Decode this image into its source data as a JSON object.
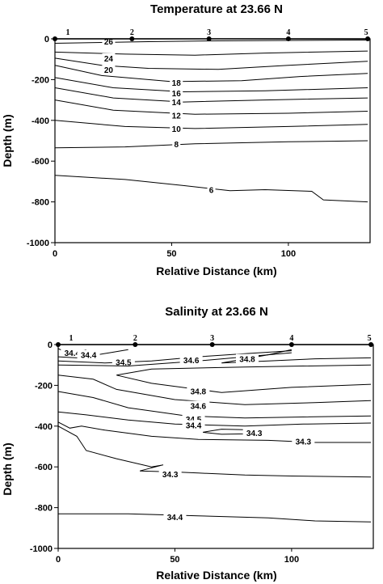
{
  "chart_data": [
    {
      "type": "contour",
      "title": "Temperature at 23.66 N",
      "xlabel": "Relative Distance (km)",
      "ylabel": "Depth (m)",
      "xlim": [
        0,
        135
      ],
      "ylim": [
        -1000,
        0
      ],
      "x_ticks": [
        0,
        50,
        100
      ],
      "y_ticks": [
        0,
        -200,
        -400,
        -600,
        -800,
        -1000
      ],
      "stations": [
        {
          "label": "1",
          "x": 0
        },
        {
          "label": "2",
          "x": 33
        },
        {
          "label": "3",
          "x": 66
        },
        {
          "label": "4",
          "x": 100
        },
        {
          "label": "5",
          "x": 134
        }
      ],
      "contours": [
        {
          "level": "26",
          "label_at": [
            23,
            -12
          ],
          "points": [
            [
              0,
              -22
            ],
            [
              20,
              -18
            ],
            [
              40,
              -14
            ],
            [
              70,
              -10
            ],
            [
              100,
              -8
            ],
            [
              134,
              -6
            ]
          ]
        },
        {
          "level": "24",
          "label_at": [
            23,
            -95
          ],
          "points": [
            [
              0,
              -65
            ],
            [
              30,
              -75
            ],
            [
              60,
              -80
            ],
            [
              90,
              -70
            ],
            [
              134,
              -60
            ]
          ]
        },
        {
          "level": "20",
          "label_at": [
            23,
            -150
          ],
          "points": [
            [
              0,
              -95
            ],
            [
              20,
              -130
            ],
            [
              40,
              -145
            ],
            [
              70,
              -150
            ],
            [
              100,
              -130
            ],
            [
              134,
              -110
            ]
          ]
        },
        {
          "level": "18",
          "label_at": [
            52,
            -215
          ],
          "points": [
            [
              0,
              -130
            ],
            [
              20,
              -180
            ],
            [
              50,
              -210
            ],
            [
              80,
              -205
            ],
            [
              105,
              -185
            ],
            [
              134,
              -170
            ]
          ]
        },
        {
          "level": "16",
          "label_at": [
            52,
            -265
          ],
          "points": [
            [
              0,
              -190
            ],
            [
              25,
              -240
            ],
            [
              55,
              -260
            ],
            [
              90,
              -255
            ],
            [
              134,
              -240
            ]
          ]
        },
        {
          "level": "14",
          "label_at": [
            52,
            -310
          ],
          "points": [
            [
              0,
              -240
            ],
            [
              25,
              -290
            ],
            [
              55,
              -310
            ],
            [
              90,
              -300
            ],
            [
              134,
              -290
            ]
          ]
        },
        {
          "level": "12",
          "label_at": [
            52,
            -375
          ],
          "points": [
            [
              0,
              -300
            ],
            [
              25,
              -350
            ],
            [
              60,
              -370
            ],
            [
              100,
              -365
            ],
            [
              134,
              -355
            ]
          ]
        },
        {
          "level": "10",
          "label_at": [
            52,
            -440
          ],
          "points": [
            [
              0,
              -400
            ],
            [
              30,
              -430
            ],
            [
              60,
              -440
            ],
            [
              100,
              -430
            ],
            [
              134,
              -420
            ]
          ]
        },
        {
          "level": "8",
          "label_at": [
            52,
            -515
          ],
          "points": [
            [
              0,
              -535
            ],
            [
              30,
              -530
            ],
            [
              60,
              -515
            ],
            [
              100,
              -505
            ],
            [
              134,
              -500
            ]
          ]
        },
        {
          "level": "6",
          "label_at": [
            67,
            -740
          ],
          "points": [
            [
              0,
              -670
            ],
            [
              30,
              -690
            ],
            [
              55,
              -720
            ],
            [
              75,
              -745
            ],
            [
              90,
              -740
            ],
            [
              110,
              -748
            ],
            [
              115,
              -790
            ],
            [
              134,
              -800
            ]
          ]
        }
      ]
    },
    {
      "type": "contour",
      "title": "Salinity at 23.66 N",
      "xlabel": "Relative Distance (km)",
      "ylabel": "Depth (m)",
      "xlim": [
        0,
        135
      ],
      "ylim": [
        -1000,
        0
      ],
      "x_ticks": [
        0,
        50,
        100
      ],
      "y_ticks": [
        0,
        -200,
        -400,
        -600,
        -800,
        -1000
      ],
      "stations": [
        {
          "label": "1",
          "x": 0
        },
        {
          "label": "2",
          "x": 33
        },
        {
          "label": "3",
          "x": 66
        },
        {
          "label": "4",
          "x": 100
        },
        {
          "label": "5",
          "x": 134
        }
      ],
      "contours": [
        {
          "level": "34.4",
          "label_at": [
            6,
            -40
          ],
          "points": [
            [
              0,
              -20
            ],
            [
              3,
              -35
            ],
            [
              6,
              -45
            ],
            [
              9,
              -35
            ],
            [
              12,
              -25
            ]
          ]
        },
        {
          "level": "34.4",
          "label_at": [
            13,
            -50
          ],
          "points": [
            [
              0,
              -60
            ],
            [
              8,
              -65
            ],
            [
              14,
              -55
            ],
            [
              22,
              -40
            ],
            [
              30,
              -25
            ]
          ]
        },
        {
          "level": "34.5",
          "label_at": [
            28,
            -85
          ],
          "points": [
            [
              0,
              -80
            ],
            [
              20,
              -90
            ],
            [
              40,
              -80
            ],
            [
              60,
              -60
            ],
            [
              80,
              -45
            ],
            [
              100,
              -30
            ]
          ]
        },
        {
          "level": "34.6",
          "label_at": [
            57,
            -75
          ],
          "points": [
            [
              0,
              -100
            ],
            [
              30,
              -105
            ],
            [
              60,
              -80
            ],
            [
              85,
              -55
            ],
            [
              100,
              -40
            ]
          ]
        },
        {
          "level": "34.8",
          "label_at": [
            81,
            -70
          ],
          "points": [
            [
              100,
              -25
            ],
            [
              90,
              -50
            ],
            [
              70,
              -90
            ],
            [
              90,
              -80
            ],
            [
              110,
              -70
            ],
            [
              134,
              -65
            ]
          ]
        },
        {
          "level": "34.8",
          "label_at": [
            60,
            -228
          ],
          "points": [
            [
              134,
              -100
            ],
            [
              80,
              -110
            ],
            [
              40,
              -120
            ],
            [
              25,
              -150
            ],
            [
              40,
              -190
            ],
            [
              70,
              -235
            ],
            [
              100,
              -210
            ],
            [
              134,
              -195
            ]
          ]
        },
        {
          "level": "34.6",
          "label_at": [
            60,
            -300
          ],
          "points": [
            [
              0,
              -150
            ],
            [
              15,
              -170
            ],
            [
              25,
              -220
            ],
            [
              50,
              -270
            ],
            [
              80,
              -295
            ],
            [
              110,
              -285
            ],
            [
              134,
              -275
            ]
          ]
        },
        {
          "level": "34.5",
          "label_at": [
            58,
            -365
          ],
          "points": [
            [
              0,
              -230
            ],
            [
              15,
              -260
            ],
            [
              30,
              -310
            ],
            [
              55,
              -350
            ],
            [
              80,
              -360
            ],
            [
              105,
              -355
            ],
            [
              134,
              -350
            ]
          ]
        },
        {
          "level": "34.4",
          "label_at": [
            58,
            -395
          ],
          "points": [
            [
              0,
              -330
            ],
            [
              12,
              -345
            ],
            [
              30,
              -370
            ],
            [
              50,
              -390
            ],
            [
              80,
              -400
            ],
            [
              105,
              -390
            ],
            [
              134,
              -385
            ]
          ]
        },
        {
          "level": "34.3",
          "label_at": [
            84,
            -432
          ],
          "points": [
            [
              62,
              -430
            ],
            [
              70,
              -415
            ],
            [
              80,
              -418
            ],
            [
              88,
              -425
            ],
            [
              80,
              -438
            ],
            [
              70,
              -440
            ],
            [
              62,
              -430
            ]
          ]
        },
        {
          "level": "34.3",
          "label_at": [
            105,
            -475
          ],
          "points": [
            [
              0,
              -380
            ],
            [
              5,
              -410
            ],
            [
              10,
              -400
            ],
            [
              20,
              -420
            ],
            [
              40,
              -450
            ],
            [
              60,
              -465
            ],
            [
              90,
              -470
            ],
            [
              110,
              -480
            ],
            [
              134,
              -480
            ]
          ]
        },
        {
          "level": "34.3",
          "label_at": [
            48,
            -635
          ],
          "points": [
            [
              0,
              -400
            ],
            [
              8,
              -450
            ],
            [
              12,
              -520
            ],
            [
              25,
              -560
            ],
            [
              40,
              -600
            ],
            [
              45,
              -590
            ],
            [
              35,
              -620
            ],
            [
              50,
              -625
            ],
            [
              60,
              -630
            ],
            [
              80,
              -640
            ],
            [
              100,
              -645
            ],
            [
              134,
              -650
            ]
          ]
        },
        {
          "level": "34.4",
          "label_at": [
            50,
            -845
          ],
          "points": [
            [
              0,
              -830
            ],
            [
              30,
              -830
            ],
            [
              60,
              -840
            ],
            [
              90,
              -850
            ],
            [
              110,
              -865
            ],
            [
              134,
              -870
            ]
          ]
        }
      ]
    }
  ]
}
